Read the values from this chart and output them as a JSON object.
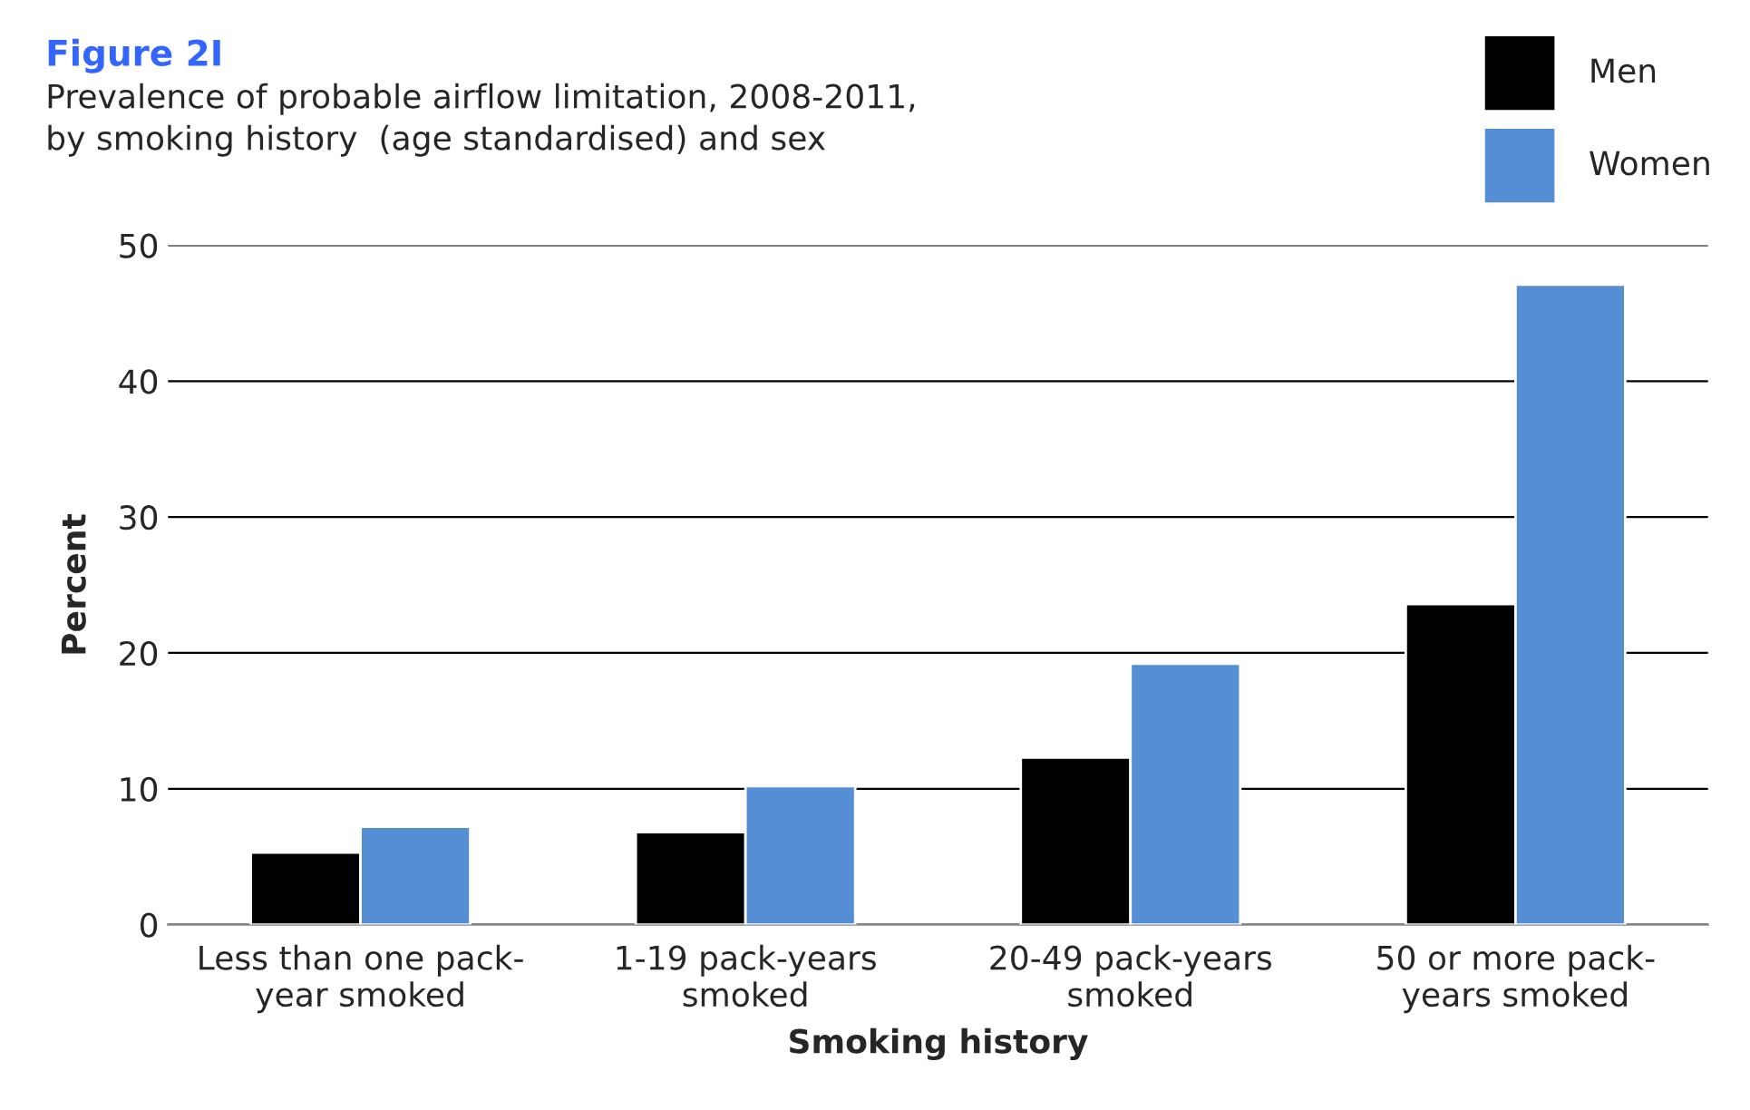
{
  "chart_data": {
    "type": "bar",
    "title": "Figure 2I",
    "subtitle": "Prevalence of probable airflow limitation, 2008-2011,\nby smoking history  (age standardised) and sex",
    "xlabel": "Smoking history",
    "ylabel": "Percent",
    "categories": [
      "Less than one pack-\nyear smoked",
      "1-19 pack-years\nsmoked",
      "20-49 pack-years\nsmoked",
      "50 or more pack-\nyears smoked"
    ],
    "series": [
      {
        "name": "Men",
        "color": "#000000",
        "values": [
          5.3,
          6.8,
          12.3,
          23.6
        ]
      },
      {
        "name": "Women",
        "color": "#558ed5",
        "values": [
          7.2,
          10.2,
          19.2,
          47.1
        ]
      }
    ],
    "ylim": [
      0,
      50
    ],
    "yticks": [
      0,
      10,
      20,
      30,
      40,
      50
    ],
    "grid": "y",
    "legend": "top right"
  }
}
